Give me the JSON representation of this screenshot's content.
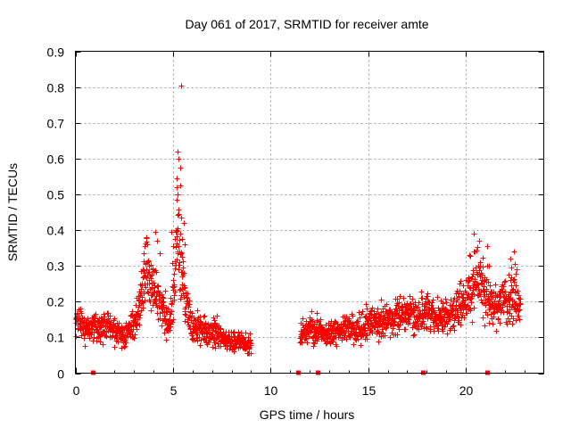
{
  "chart_data": {
    "type": "scatter",
    "title": "Day 061 of 2017, SRMTID for receiver amte",
    "xlabel": "GPS time / hours",
    "ylabel": "SRMTID / TECUs",
    "xlim": [
      0,
      24
    ],
    "ylim": [
      0,
      0.9
    ],
    "x_ticks": [
      0,
      5,
      10,
      15,
      20
    ],
    "x_tick_labels": [
      "0",
      "5",
      "10",
      "15",
      "20"
    ],
    "y_ticks": [
      0,
      0.1,
      0.2,
      0.3,
      0.4,
      0.5,
      0.6,
      0.7,
      0.8,
      0.9
    ],
    "y_tick_labels": [
      "0",
      "0.1",
      "0.2",
      "0.3",
      "0.4",
      "0.5",
      "0.6",
      "0.7",
      "0.8",
      "0.9"
    ],
    "grid": true,
    "marker": "+",
    "series_color": "#ff0000",
    "series": [
      {
        "name": "SRMTID",
        "profile": [
          [
            0.0,
            0.15
          ],
          [
            0.5,
            0.13
          ],
          [
            1.0,
            0.14
          ],
          [
            1.5,
            0.13
          ],
          [
            2.0,
            0.12
          ],
          [
            2.5,
            0.11
          ],
          [
            3.0,
            0.13
          ],
          [
            3.3,
            0.2
          ],
          [
            3.6,
            0.29
          ],
          [
            3.9,
            0.24
          ],
          [
            4.2,
            0.22
          ],
          [
            4.5,
            0.17
          ],
          [
            4.8,
            0.13
          ],
          [
            5.0,
            0.25
          ],
          [
            5.2,
            0.4
          ],
          [
            5.4,
            0.3
          ],
          [
            5.6,
            0.2
          ],
          [
            6.0,
            0.13
          ],
          [
            6.5,
            0.12
          ],
          [
            7.0,
            0.12
          ],
          [
            7.5,
            0.1
          ],
          [
            8.0,
            0.09
          ],
          [
            8.5,
            0.09
          ],
          [
            9.0,
            0.08
          ],
          null,
          [
            11.5,
            0.1
          ],
          [
            12.0,
            0.13
          ],
          [
            12.5,
            0.12
          ],
          [
            13.0,
            0.11
          ],
          [
            13.5,
            0.12
          ],
          [
            14.0,
            0.13
          ],
          [
            14.5,
            0.12
          ],
          [
            15.0,
            0.14
          ],
          [
            15.5,
            0.15
          ],
          [
            16.0,
            0.15
          ],
          [
            16.5,
            0.16
          ],
          [
            17.0,
            0.17
          ],
          [
            17.5,
            0.16
          ],
          [
            18.0,
            0.17
          ],
          [
            18.5,
            0.16
          ],
          [
            19.0,
            0.16
          ],
          [
            19.5,
            0.18
          ],
          [
            20.0,
            0.2
          ],
          [
            20.3,
            0.24
          ],
          [
            20.6,
            0.26
          ],
          [
            21.0,
            0.22
          ],
          [
            21.5,
            0.19
          ],
          [
            22.0,
            0.2
          ],
          [
            22.5,
            0.22
          ],
          [
            22.8,
            0.18
          ]
        ],
        "outliers": [
          [
            5.4,
            0.805
          ],
          [
            5.25,
            0.62
          ],
          [
            5.3,
            0.6
          ],
          [
            5.35,
            0.575
          ],
          [
            5.2,
            0.545
          ],
          [
            5.35,
            0.525
          ],
          [
            5.25,
            0.5
          ],
          [
            5.2,
            0.485
          ],
          [
            5.3,
            0.445
          ],
          [
            5.4,
            0.435
          ],
          [
            5.55,
            0.42
          ],
          [
            5.2,
            0.4
          ],
          [
            4.9,
            0.395
          ],
          [
            5.45,
            0.375
          ],
          [
            5.6,
            0.36
          ],
          [
            5.0,
            0.355
          ],
          [
            3.65,
            0.38
          ],
          [
            3.7,
            0.36
          ],
          [
            3.55,
            0.355
          ],
          [
            4.1,
            0.395
          ],
          [
            4.2,
            0.37
          ],
          [
            20.4,
            0.39
          ],
          [
            20.7,
            0.37
          ],
          [
            21.1,
            0.355
          ],
          [
            22.3,
            0.32
          ],
          [
            4.3,
            0.335
          ],
          [
            20.2,
            0.33
          ],
          [
            22.5,
            0.305
          ],
          [
            21.2,
            0.3
          ],
          [
            3.5,
            0.335
          ]
        ]
      }
    ],
    "data_gap_markers": [
      0.9,
      11.4,
      12.4,
      17.8,
      21.1
    ]
  }
}
